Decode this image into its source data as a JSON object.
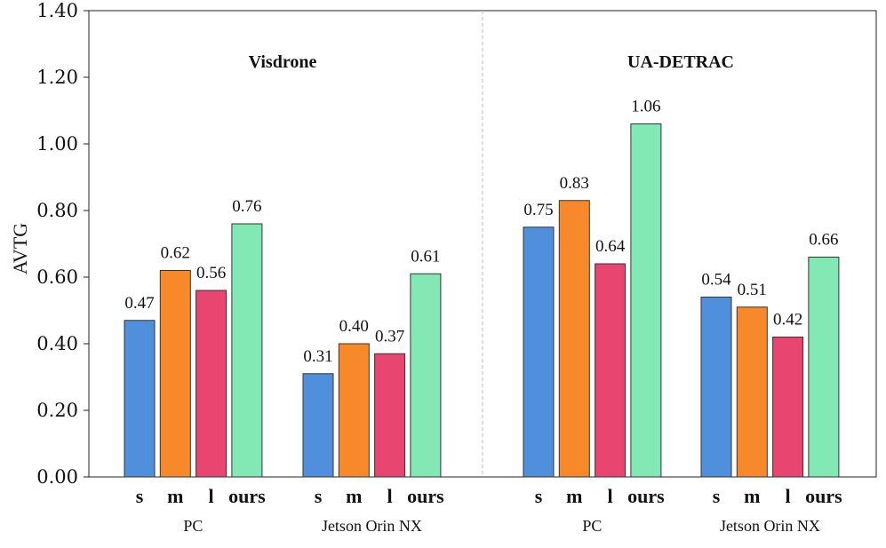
{
  "chart_data": {
    "type": "bar",
    "ylabel": "AVTG",
    "ylim": [
      0,
      1.4
    ],
    "yticks": [
      "0.00",
      "0.20",
      "0.40",
      "0.60",
      "0.80",
      "1.00",
      "1.20",
      "1.40"
    ],
    "methods": [
      "s",
      "m",
      "l",
      "ours"
    ],
    "colors": [
      "#4f8fdb",
      "#f7892b",
      "#e84570",
      "#82e8b4"
    ],
    "datasets": [
      {
        "title": "Visdrone",
        "groups": [
          {
            "device": "PC",
            "values": [
              0.47,
              0.62,
              0.56,
              0.76
            ],
            "labels": [
              "0.47",
              "0.62",
              "0.56",
              "0.76"
            ]
          },
          {
            "device": "Jetson Orin NX",
            "values": [
              0.31,
              0.4,
              0.37,
              0.61
            ],
            "labels": [
              "0.31",
              "0.40",
              "0.37",
              "0.61"
            ]
          }
        ]
      },
      {
        "title": "UA-DETRAC",
        "groups": [
          {
            "device": "PC",
            "values": [
              0.75,
              0.83,
              0.64,
              1.06
            ],
            "labels": [
              "0.75",
              "0.83",
              "0.64",
              "1.06"
            ]
          },
          {
            "device": "Jetson Orin NX",
            "values": [
              0.54,
              0.51,
              0.42,
              0.66
            ],
            "labels": [
              "0.54",
              "0.51",
              "0.42",
              "0.66"
            ]
          }
        ]
      }
    ]
  }
}
